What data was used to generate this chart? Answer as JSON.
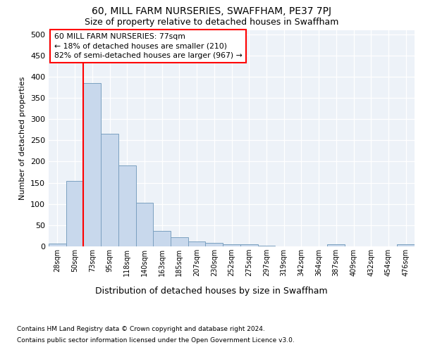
{
  "title": "60, MILL FARM NURSERIES, SWAFFHAM, PE37 7PJ",
  "subtitle": "Size of property relative to detached houses in Swaffham",
  "xlabel": "Distribution of detached houses by size in Swaffham",
  "ylabel": "Number of detached properties",
  "bar_color": "#c8d8ec",
  "bar_edge_color": "#7ba0c0",
  "categories": [
    "28sqm",
    "50sqm",
    "73sqm",
    "95sqm",
    "118sqm",
    "140sqm",
    "163sqm",
    "185sqm",
    "207sqm",
    "230sqm",
    "252sqm",
    "275sqm",
    "297sqm",
    "319sqm",
    "342sqm",
    "364sqm",
    "387sqm",
    "409sqm",
    "432sqm",
    "454sqm",
    "476sqm"
  ],
  "values": [
    7,
    155,
    385,
    265,
    190,
    103,
    36,
    21,
    11,
    8,
    5,
    5,
    2,
    0,
    0,
    0,
    5,
    0,
    0,
    0,
    5
  ],
  "property_label": "60 MILL FARM NURSERIES: 77sqm",
  "pct_smaller": 18,
  "num_smaller": 210,
  "pct_larger": 82,
  "num_larger": 967,
  "vline_x": 1.5,
  "ylim": [
    0,
    510
  ],
  "yticks": [
    0,
    50,
    100,
    150,
    200,
    250,
    300,
    350,
    400,
    450,
    500
  ],
  "background_color": "#edf2f8",
  "footer_line1": "Contains HM Land Registry data © Crown copyright and database right 2024.",
  "footer_line2": "Contains public sector information licensed under the Open Government Licence v3.0."
}
